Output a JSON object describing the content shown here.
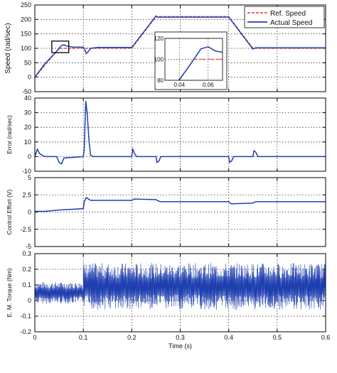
{
  "chart_data": [
    {
      "type": "line",
      "ylabel": "Speed (rad/sec)",
      "xlim": [
        0,
        0.6
      ],
      "ylim": [
        -50,
        250
      ],
      "xticks": [
        "0",
        "0.1",
        "0.2",
        "0.3",
        "0.4",
        "0.5",
        "0.6"
      ],
      "yticks": [
        "-50",
        "0",
        "50",
        "100",
        "150",
        "200",
        "250"
      ],
      "show_xticklabels": false,
      "grid": true,
      "legend": {
        "position": "top-right",
        "entries": [
          "Ref. Speed",
          "Actual Speed"
        ]
      },
      "series": [
        {
          "name": "Ref. Speed",
          "color": "#e8504b",
          "dashed": true,
          "x": [
            0,
            0.05,
            0.2,
            0.25,
            0.4,
            0.45,
            0.6
          ],
          "y": [
            0,
            100,
            100,
            210,
            210,
            100,
            100
          ]
        },
        {
          "name": "Actual Speed",
          "color": "#1f3fb0",
          "dashed": false,
          "x": [
            0,
            0.02,
            0.045,
            0.055,
            0.06,
            0.065,
            0.08,
            0.1,
            0.102,
            0.106,
            0.11,
            0.115,
            0.13,
            0.2,
            0.25,
            0.253,
            0.4,
            0.45,
            0.455,
            0.6
          ],
          "y": [
            0,
            45,
            90,
            110,
            112,
            108,
            104,
            104,
            99,
            82,
            88,
            100,
            103,
            103,
            212,
            208,
            208,
            97,
            102,
            102
          ]
        }
      ],
      "inset": {
        "xlim": [
          0.03,
          0.07
        ],
        "ylim": [
          80,
          120
        ],
        "xticks": [
          "0.04",
          "0.06"
        ],
        "yticks": [
          "80",
          "100",
          "120"
        ],
        "zoom_box": {
          "x": [
            0.035,
            0.07
          ],
          "y": [
            85,
            125
          ]
        }
      }
    },
    {
      "type": "line",
      "ylabel": "Error (rad/sec)",
      "xlim": [
        0,
        0.6
      ],
      "ylim": [
        -10,
        40
      ],
      "xticks": [
        "0",
        "0.1",
        "0.2",
        "0.3",
        "0.4",
        "0.5",
        "0.6"
      ],
      "yticks": [
        "-10",
        "0",
        "10",
        "20",
        "30",
        "40"
      ],
      "show_xticklabels": false,
      "grid": true,
      "series": [
        {
          "name": "",
          "color": "#1f3fb0",
          "x": [
            0,
            0.005,
            0.01,
            0.02,
            0.045,
            0.05,
            0.055,
            0.06,
            0.1,
            0.102,
            0.105,
            0.108,
            0.112,
            0.115,
            0.12,
            0.2,
            0.202,
            0.206,
            0.21,
            0.25,
            0.252,
            0.256,
            0.26,
            0.4,
            0.402,
            0.406,
            0.41,
            0.45,
            0.452,
            0.456,
            0.46,
            0.6
          ],
          "y": [
            0,
            5,
            2,
            0,
            0,
            -4,
            -5,
            -1,
            0,
            5,
            38,
            30,
            10,
            1,
            0,
            0,
            5,
            2,
            0,
            0,
            -4,
            -3,
            0,
            0,
            -4,
            -3,
            0,
            0,
            4,
            3,
            0,
            0
          ]
        }
      ]
    },
    {
      "type": "line",
      "ylabel": "Control Effort (V)",
      "xlim": [
        0,
        0.6
      ],
      "ylim": [
        -5,
        5
      ],
      "xticks": [
        "0",
        "0.1",
        "0.2",
        "0.3",
        "0.4",
        "0.5",
        "0.6"
      ],
      "yticks": [
        "-5",
        "-2.5",
        "0",
        "2.5",
        "5"
      ],
      "show_xticklabels": false,
      "grid": true,
      "series": [
        {
          "name": "",
          "color": "#1f3fb0",
          "x": [
            0,
            0.02,
            0.05,
            0.1,
            0.102,
            0.106,
            0.115,
            0.2,
            0.205,
            0.25,
            0.255,
            0.26,
            0.4,
            0.405,
            0.45,
            0.455,
            0.6
          ],
          "y": [
            0.1,
            0.1,
            0.3,
            0.5,
            1.5,
            2.1,
            1.7,
            1.7,
            1.9,
            1.8,
            1.6,
            1.5,
            1.5,
            1.2,
            1.3,
            1.5,
            1.5
          ]
        }
      ]
    },
    {
      "type": "line",
      "ylabel": "E. M. Torque (Nm)",
      "xlabel": "Time (s)",
      "xlim": [
        0,
        0.6
      ],
      "ylim": [
        -0.2,
        0.3
      ],
      "xticks": [
        "0",
        "0.1",
        "0.2",
        "0.3",
        "0.4",
        "0.5",
        "0.6"
      ],
      "yticks": [
        "-0.2",
        "-0.1",
        "0",
        "0.1",
        "0.2",
        "0.3"
      ],
      "show_xticklabels": true,
      "grid": true,
      "noisy_band": [
        {
          "x_start": 0,
          "x_end": 0.1,
          "center": 0.05,
          "amplitude": 0.07
        },
        {
          "x_start": 0.1,
          "x_end": 0.6,
          "center": 0.09,
          "amplitude": 0.15
        }
      ],
      "series": [
        {
          "name": "",
          "color": "#1f3fb0"
        }
      ]
    }
  ]
}
